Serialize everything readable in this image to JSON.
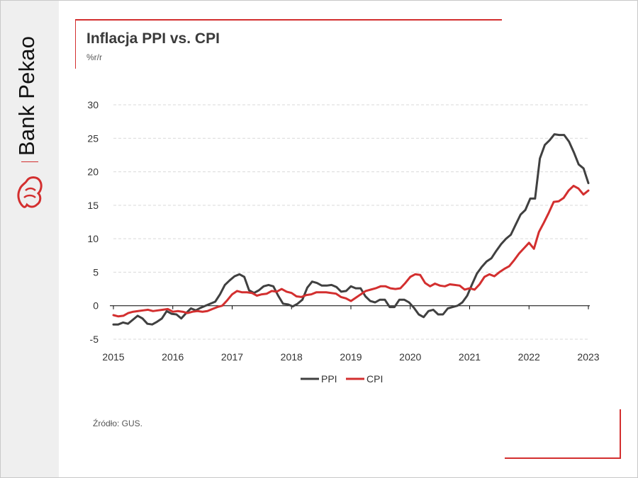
{
  "brand": {
    "name": "Bank Pekao",
    "color": "#d32f2f"
  },
  "header": {
    "title": "Inflacja PPI vs. CPI",
    "subtitle": "%r/r"
  },
  "footer": {
    "source": "Źródło: GUS."
  },
  "chart_data": {
    "type": "line",
    "title": "Inflacja PPI vs. CPI",
    "ylabel": "%r/r",
    "xlabel": "",
    "xlim": [
      2015,
      2023
    ],
    "ylim": [
      -5,
      30
    ],
    "x_ticks": [
      "2015",
      "2016",
      "2017",
      "2018",
      "2019",
      "2020",
      "2021",
      "2022",
      "2023"
    ],
    "y_ticks": [
      "30",
      "25",
      "20",
      "15",
      "10",
      "5",
      "0",
      "-5"
    ],
    "grid": "horizontal dashed",
    "legend": "bottom-center",
    "start": "2015-01",
    "frequency": "monthly",
    "series": [
      {
        "name": "PPI",
        "color": "#404040",
        "values": [
          -2.8,
          -2.8,
          -2.5,
          -2.7,
          -2.1,
          -1.5,
          -1.9,
          -2.7,
          -2.8,
          -2.4,
          -1.9,
          -0.8,
          -1.2,
          -1.3,
          -1.9,
          -1.1,
          -0.4,
          -0.7,
          -0.3,
          0.0,
          0.3,
          0.6,
          1.7,
          3.1,
          3.8,
          4.4,
          4.7,
          4.3,
          2.3,
          1.9,
          2.3,
          2.9,
          3.1,
          2.9,
          1.5,
          0.3,
          0.2,
          -0.1,
          0.3,
          0.9,
          2.7,
          3.6,
          3.4,
          3.0,
          3.0,
          3.1,
          2.8,
          2.1,
          2.2,
          2.9,
          2.6,
          2.6,
          1.4,
          0.7,
          0.5,
          0.9,
          0.9,
          -0.2,
          -0.2,
          0.9,
          0.9,
          0.5,
          -0.3,
          -1.3,
          -1.7,
          -0.8,
          -0.6,
          -1.3,
          -1.3,
          -0.4,
          -0.2,
          0.0,
          0.5,
          1.5,
          3.2,
          4.8,
          5.8,
          6.6,
          7.1,
          8.2,
          9.2,
          10.0,
          10.6,
          12.1,
          13.6,
          14.3,
          16.0,
          16.0,
          22.0,
          24.0,
          24.7,
          25.6,
          25.5,
          25.5,
          24.5,
          22.9,
          21.1,
          20.5,
          18.3
        ]
      },
      {
        "name": "CPI",
        "color": "#d32f2f",
        "values": [
          -1.4,
          -1.6,
          -1.5,
          -1.1,
          -0.9,
          -0.8,
          -0.7,
          -0.6,
          -0.8,
          -0.7,
          -0.6,
          -0.5,
          -0.9,
          -0.8,
          -0.9,
          -1.1,
          -0.9,
          -0.8,
          -0.9,
          -0.8,
          -0.5,
          -0.2,
          0.0,
          0.8,
          1.7,
          2.2,
          2.0,
          2.0,
          1.9,
          1.5,
          1.7,
          1.8,
          2.2,
          2.1,
          2.5,
          2.1,
          1.9,
          1.4,
          1.3,
          1.6,
          1.7,
          2.0,
          2.0,
          2.0,
          1.9,
          1.8,
          1.3,
          1.1,
          0.7,
          1.2,
          1.7,
          2.2,
          2.4,
          2.6,
          2.9,
          2.9,
          2.6,
          2.5,
          2.6,
          3.4,
          4.3,
          4.7,
          4.6,
          3.4,
          2.9,
          3.3,
          3.0,
          2.9,
          3.2,
          3.1,
          3.0,
          2.4,
          2.6,
          2.4,
          3.2,
          4.3,
          4.7,
          4.4,
          5.0,
          5.5,
          5.9,
          6.8,
          7.8,
          8.6,
          9.4,
          8.5,
          11.0,
          12.4,
          13.9,
          15.5,
          15.6,
          16.1,
          17.2,
          17.9,
          17.5,
          16.6,
          17.2
        ]
      }
    ]
  }
}
